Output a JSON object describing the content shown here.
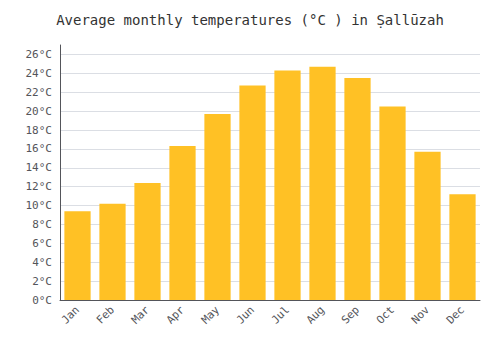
{
  "chart_data": {
    "type": "bar",
    "title": "Average monthly temperatures (°C ) in Ṣallūzah",
    "categories": [
      "Jan",
      "Feb",
      "Mar",
      "Apr",
      "May",
      "Jun",
      "Jul",
      "Aug",
      "Sep",
      "Oct",
      "Nov",
      "Dec"
    ],
    "values": [
      9.4,
      10.2,
      12.4,
      16.3,
      19.7,
      22.7,
      24.3,
      24.7,
      23.5,
      20.5,
      15.7,
      11.2
    ],
    "color": "#FFC125",
    "ylim": [
      0,
      27
    ],
    "yticks": [
      {
        "value": 0,
        "label": "0°C"
      },
      {
        "value": 2,
        "label": "2°C"
      },
      {
        "value": 4,
        "label": "4°C"
      },
      {
        "value": 6,
        "label": "6°C"
      },
      {
        "value": 8,
        "label": "8°C"
      },
      {
        "value": 10,
        "label": "10°C"
      },
      {
        "value": 12,
        "label": "12°C"
      },
      {
        "value": 14,
        "label": "14°C"
      },
      {
        "value": 16,
        "label": "16°C"
      },
      {
        "value": 18,
        "label": "18°C"
      },
      {
        "value": 20,
        "label": "20°C"
      },
      {
        "value": 22,
        "label": "22°C"
      },
      {
        "value": 24,
        "label": "24°C"
      },
      {
        "value": 26,
        "label": "26°C"
      }
    ],
    "grid": true
  }
}
